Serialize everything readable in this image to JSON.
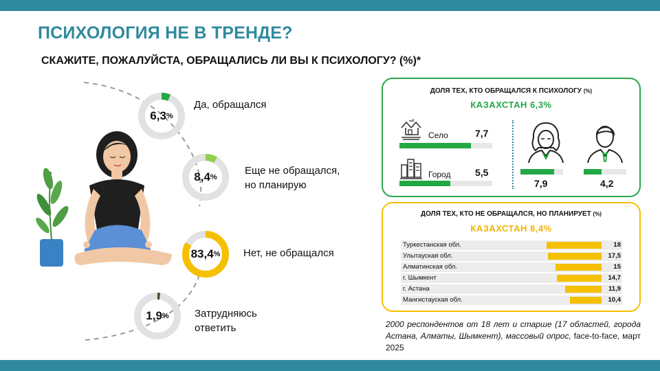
{
  "header": {
    "title": "ПСИХОЛОГИЯ НЕ В ТРЕНДЕ?",
    "subtitle": "СКАЖИТЕ, ПОЖАЛУЙСТА, ОБРАЩАЛИСЬ ЛИ ВЫ К ПСИХОЛОГУ? (%)*"
  },
  "donuts": [
    {
      "value": "6,3",
      "pct": "%",
      "share": 6.3,
      "color": "#22a845",
      "label_l1": "Да, обращался",
      "label_l2": ""
    },
    {
      "value": "8,4",
      "pct": "%",
      "share": 8.4,
      "color": "#8fd14f",
      "label_l1": "Еще не обращался,",
      "label_l2": "но планирую"
    },
    {
      "value": "83,4",
      "pct": "%",
      "share": 83.4,
      "color": "#f5c000",
      "label_l1": "Нет, не обращался",
      "label_l2": ""
    },
    {
      "value": "1,9",
      "pct": "%",
      "share": 1.9,
      "color": "#4a4a2a",
      "label_l1": "Затрудняюсь",
      "label_l2": "ответить"
    }
  ],
  "colors": {
    "teal": "#2f8a9e",
    "green": "#22a845",
    "yellow": "#f5c000",
    "track": "#e7e7e7"
  },
  "visited": {
    "heading": "ДОЛЯ ТЕХ, КТО ОБРАЩАЛСЯ  К ПСИХОЛОГУ",
    "heading_unit": "(%)",
    "country": "КАЗАХСТАН  6,3%",
    "settlements": [
      {
        "icon": "village-icon",
        "label": "Село",
        "value": "7,7",
        "share": 7.7
      },
      {
        "icon": "city-icon",
        "label": "Город",
        "value": "5,5",
        "share": 5.5
      }
    ],
    "genders": [
      {
        "icon": "woman-icon",
        "value": "7,9",
        "share": 7.9
      },
      {
        "icon": "man-icon",
        "value": "4,2",
        "share": 4.2
      }
    ]
  },
  "planning": {
    "heading": "ДОЛЯ ТЕХ, КТО НЕ ОБРАЩАЛСЯ,  НО ПЛАНИРУЕТ",
    "heading_unit": "(%)",
    "country": "КАЗАХСТАН  8,4%",
    "regions": [
      {
        "name": "Туркестанская обл.",
        "value": "18",
        "share": 18
      },
      {
        "name": "Улытауская обл.",
        "value": "17,5",
        "share": 17.5
      },
      {
        "name": "Алматинская обл.",
        "value": "15",
        "share": 15
      },
      {
        "name": "г. Шымкент",
        "value": "14,7",
        "share": 14.7
      },
      {
        "name": "г. Астана",
        "value": "11,9",
        "share": 11.9
      },
      {
        "name": "Мангистауская обл.",
        "value": "10,4",
        "share": 10.4
      }
    ]
  },
  "footnote": {
    "text": "2000 респондентов от 18 лет и старше (17 областей, города Астана, Алматы, Шымкент), массовый опрос, ",
    "tail": "face-to-face, март 2025"
  }
}
